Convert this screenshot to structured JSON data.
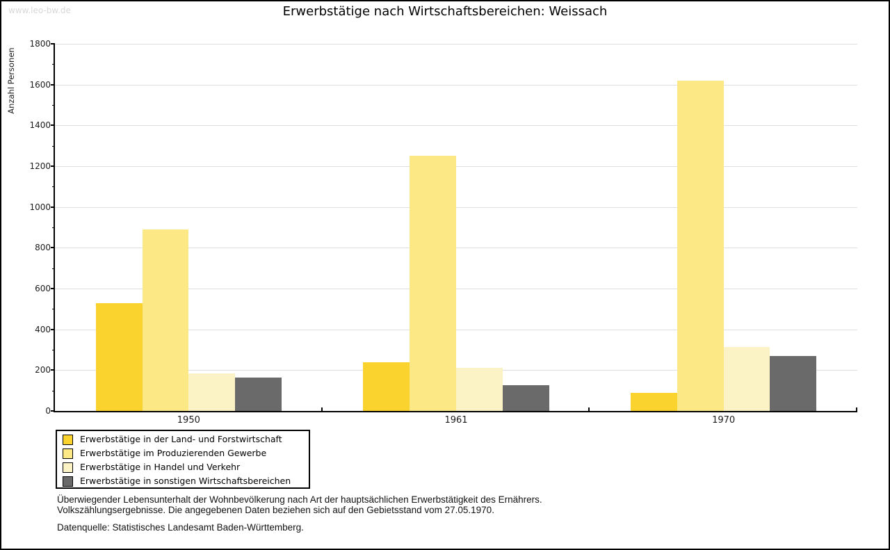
{
  "watermark": "www.leo-bw.de",
  "title": "Erwerbstätige nach Wirtschaftsbereichen: Weissach",
  "chart_data": {
    "type": "bar",
    "title": "Erwerbstätige nach Wirtschaftsbereichen: Weissach",
    "ylabel": "Anzahl Personen",
    "xlabel": "",
    "ylim": [
      0,
      1800
    ],
    "ytick_step": 200,
    "yminor_step": 100,
    "grid": true,
    "legend_position": "bottom-left",
    "categories": [
      "1950",
      "1961",
      "1970"
    ],
    "series": [
      {
        "name": "Erwerbstätige in der Land- und Forstwirtschaft",
        "color": "#FBD32F",
        "values": [
          530,
          240,
          90
        ]
      },
      {
        "name": "Erwerbstätige im Produzierenden Gewerbe",
        "color": "#FCE885",
        "values": [
          890,
          1250,
          1620
        ]
      },
      {
        "name": "Erwerbstätige in Handel und Verkehr",
        "color": "#FBF2C6",
        "values": [
          185,
          210,
          315
        ]
      },
      {
        "name": "Erwerbstätige in sonstigen Wirtschaftsbereichen",
        "color": "#6A6A6A",
        "values": [
          165,
          125,
          270
        ]
      }
    ]
  },
  "footnotes": {
    "line1": "Überwiegender Lebensunterhalt der Wohnbevölkerung nach Art der hauptsächlichen Erwerbstätigkeit des Ernährers.",
    "line2": "Volkszählungsergebnisse. Die angegebenen Daten beziehen sich auf den Gebietsstand vom 27.05.1970.",
    "source": "Datenquelle: Statistisches Landesamt Baden-Württemberg."
  }
}
